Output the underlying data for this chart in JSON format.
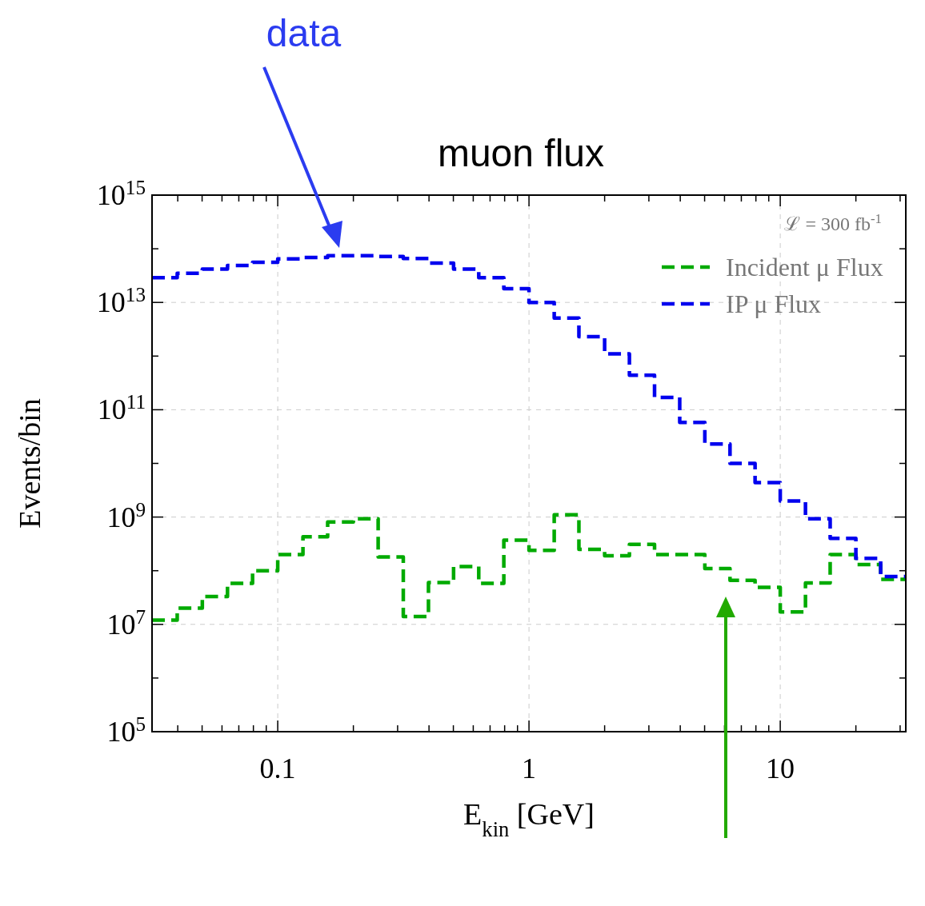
{
  "chart_data": {
    "type": "histogram",
    "title": "muon flux",
    "xlabel": "E$_{kin}$   [GeV]",
    "ylabel": "Events/bin",
    "annotations": [
      "ℒ = 300 fb$^{-1}$",
      "data"
    ],
    "bins": [
      0.0316,
      0.0398,
      0.0501,
      0.0631,
      0.0794,
      0.1,
      0.126,
      0.158,
      0.2,
      0.251,
      0.316,
      0.398,
      0.501,
      0.631,
      0.794,
      1,
      1.26,
      1.58,
      2,
      2.51,
      3.16,
      3.98,
      5.01,
      6.31,
      7.94,
      10,
      12.6,
      15.8,
      20,
      25.1,
      31.6
    ],
    "series": [
      {
        "name": "Incident μ  Flux",
        "color": "#00aa00",
        "values": [
          12000000.0,
          20000000.0,
          33000000.0,
          58000000.0,
          100000000.0,
          200000000.0,
          430000000.0,
          810000000.0,
          930000000.0,
          180000000.0,
          14000000.0,
          60000000.0,
          120000000.0,
          58000000.0,
          370000000.0,
          240000000.0,
          1100000000.0,
          250000000.0,
          190000000.0,
          310000000.0,
          200000000.0,
          200000000.0,
          110000000.0,
          66000000.0,
          49000000.0,
          17000000.0,
          59000000.0,
          200000000.0,
          130000000.0,
          69000000.0
        ]
      },
      {
        "name": "IP μ  Flux",
        "color": "#0000ee",
        "values": [
          29000000000000.0,
          35000000000000.0,
          42000000000000.0,
          49000000000000.0,
          56000000000000.0,
          65000000000000.0,
          69000000000000.0,
          74000000000000.0,
          74000000000000.0,
          72000000000000.0,
          66000000000000.0,
          54000000000000.0,
          42000000000000.0,
          29000000000000.0,
          18000000000000.0,
          10000000000000.0,
          5100000000000.0,
          2300000000000.0,
          1100000000000.0,
          440000000000.0,
          170000000000.0,
          58000000000.0,
          23000000000.0,
          10000000000.0,
          4400000000.0,
          2000000000.0,
          930000000.0,
          400000000.0,
          170000000.0,
          78000000.0
        ]
      }
    ],
    "log": "xy",
    "xlim": [
      0.0316,
      31.6
    ],
    "ylim": [
      100000.0,
      1000000000000000.0
    ],
    "xticks": [
      {
        "value": 0.04,
        "label": null
      },
      {
        "value": 0.05,
        "label": null
      },
      {
        "value": 0.06,
        "label": null
      },
      {
        "value": 0.07,
        "label": null
      },
      {
        "value": 0.08,
        "label": null
      },
      {
        "value": 0.09,
        "label": null
      },
      0.1,
      {
        "value": 0.2,
        "label": null
      },
      {
        "value": 0.3,
        "label": null
      },
      {
        "value": 0.4,
        "label": null
      },
      {
        "value": 0.5,
        "label": null
      },
      {
        "value": 0.6,
        "label": null
      },
      {
        "value": 0.7,
        "label": null
      },
      {
        "value": 0.8,
        "label": null
      },
      {
        "value": 0.9,
        "label": null
      },
      1,
      {
        "value": 2,
        "label": null
      },
      {
        "value": 3,
        "label": null
      },
      {
        "value": 4,
        "label": null
      },
      {
        "value": 5,
        "label": null
      },
      {
        "value": 6,
        "label": null
      },
      {
        "value": 7,
        "label": null
      },
      {
        "value": 8,
        "label": null
      },
      {
        "value": 9,
        "label": null
      },
      10,
      {
        "value": 20,
        "label": null
      },
      {
        "value": 30,
        "label": null
      }
    ],
    "yticks": [
      {
        "value": 100000.0,
        "label": "10$^{5}$"
      },
      {
        "value": 1000000.0,
        "label": null
      },
      {
        "value": 10000000.0,
        "label": "10$^{7}$"
      },
      {
        "value": 100000000.0,
        "label": null
      },
      {
        "value": 1000000000.0,
        "label": "10$^{9}$"
      },
      {
        "value": 10000000000.0,
        "label": null
      },
      {
        "value": 100000000000.0,
        "label": "10$^{11}$"
      },
      {
        "value": 1000000000000.0,
        "label": null
      },
      {
        "value": 10000000000000.0,
        "label": "10$^{13}$"
      },
      {
        "value": 100000000000000.0,
        "label": null
      },
      {
        "value": 1000000000000000.0,
        "label": "10$^{15}$"
      }
    ],
    "grid": true,
    "legend": "top right",
    "line_style": "dashed"
  }
}
